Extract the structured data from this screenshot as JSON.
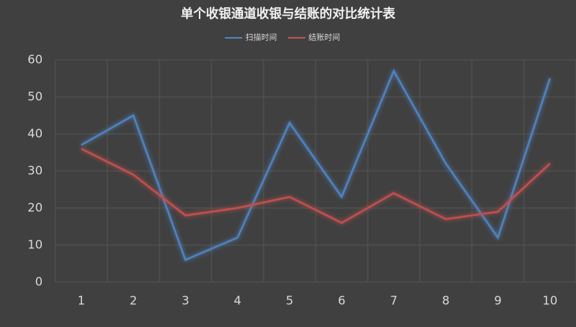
{
  "chart_data": {
    "type": "line",
    "title": "单个收银通道收银与结账的对比统计表",
    "categories": [
      "1",
      "2",
      "3",
      "4",
      "5",
      "6",
      "7",
      "8",
      "9",
      "10"
    ],
    "series": [
      {
        "name": "扫描时间",
        "color": "#4f81bd",
        "values": [
          37,
          45,
          6,
          12,
          43,
          23,
          57,
          32,
          12,
          55
        ]
      },
      {
        "name": "结账时间",
        "color": "#c0504d",
        "values": [
          36,
          29,
          18,
          20,
          23,
          16,
          24,
          17,
          19,
          32
        ]
      }
    ],
    "ylim": [
      0,
      60
    ],
    "yticks": [
      0,
      10,
      20,
      30,
      40,
      50,
      60
    ],
    "grid": true
  }
}
